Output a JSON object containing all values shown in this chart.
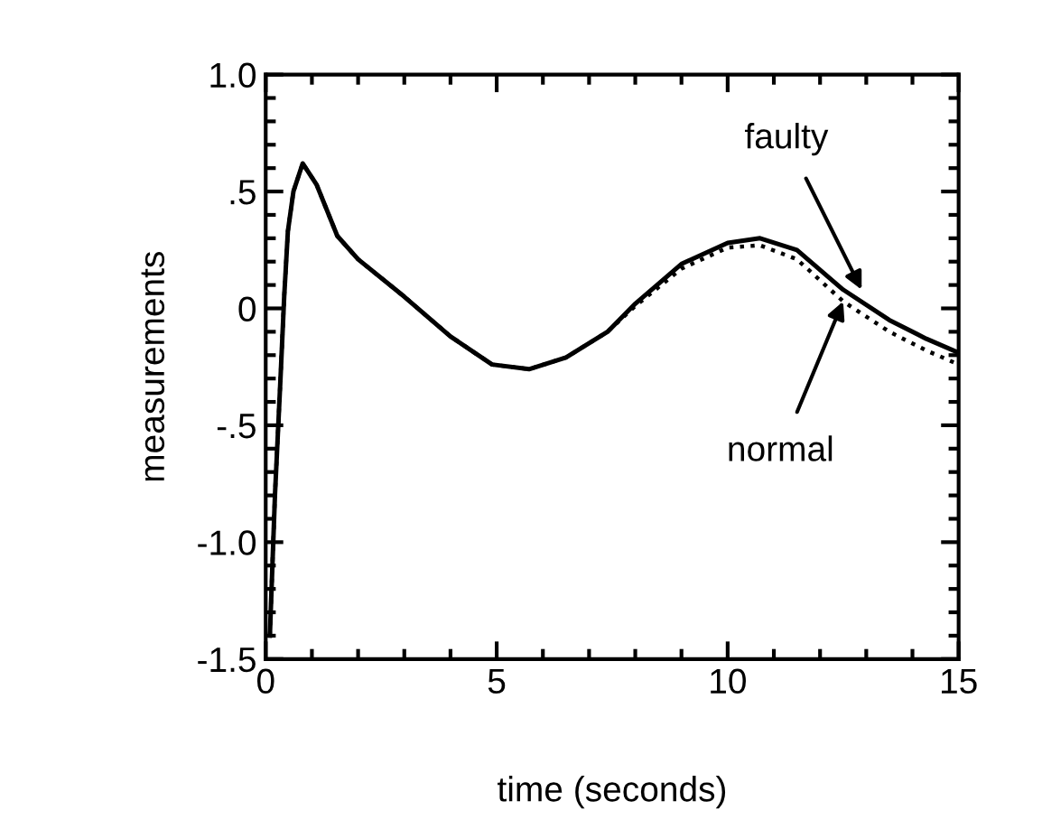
{
  "chart_data": {
    "type": "line",
    "xlabel": "time (seconds)",
    "ylabel": "measurements",
    "xlim": [
      0,
      15
    ],
    "ylim": [
      -1.5,
      1.0
    ],
    "xticks": [
      0,
      5,
      10,
      15
    ],
    "yticks": [
      {
        "value": -1.5,
        "label": "-1.5"
      },
      {
        "value": -1.0,
        "label": "-1.0"
      },
      {
        "value": -0.5,
        "label": "-.5"
      },
      {
        "value": 0,
        "label": "0"
      },
      {
        "value": 0.5,
        "label": ".5"
      },
      {
        "value": 1.0,
        "label": "1.0"
      }
    ],
    "grid": false,
    "legend": false,
    "marker": "none",
    "series": [
      {
        "color": "#000000",
        "line_style": "solid",
        "x": [
          0.09,
          0.2,
          0.32,
          0.4,
          0.48,
          0.6,
          0.8,
          1.1,
          1.55,
          2.0,
          3.0,
          4.0,
          4.9,
          5.7,
          6.5,
          7.4,
          8.0,
          9.0,
          10.0,
          10.7,
          11.5,
          12.5,
          13.5,
          14.3,
          15.0
        ],
        "values": [
          -1.4,
          -0.8,
          -0.3,
          0.05,
          0.33,
          0.5,
          0.62,
          0.53,
          0.31,
          0.21,
          0.05,
          -0.12,
          -0.24,
          -0.26,
          -0.21,
          -0.1,
          0.02,
          0.19,
          0.28,
          0.3,
          0.25,
          0.08,
          -0.05,
          -0.13,
          -0.19
        ]
      },
      {
        "color": "#000000",
        "line_style": "dotted",
        "x": [
          0.09,
          0.2,
          0.32,
          0.4,
          0.48,
          0.6,
          0.8,
          1.1,
          1.55,
          2.0,
          3.0,
          4.0,
          4.9,
          5.7,
          6.5,
          7.4,
          8.0,
          9.0,
          10.0,
          10.7,
          11.5,
          12.5,
          13.5,
          14.3,
          15.0
        ],
        "values": [
          -1.4,
          -0.8,
          -0.3,
          0.05,
          0.33,
          0.5,
          0.62,
          0.53,
          0.31,
          0.21,
          0.05,
          -0.12,
          -0.24,
          -0.26,
          -0.21,
          -0.1,
          0.01,
          0.17,
          0.26,
          0.27,
          0.21,
          0.03,
          -0.1,
          -0.18,
          -0.24
        ]
      }
    ],
    "annotations": [
      {
        "text": "faulty",
        "x": 12.9,
        "y": 0.08
      },
      {
        "text": "normal",
        "x": 12.5,
        "y": 0.03
      }
    ]
  }
}
